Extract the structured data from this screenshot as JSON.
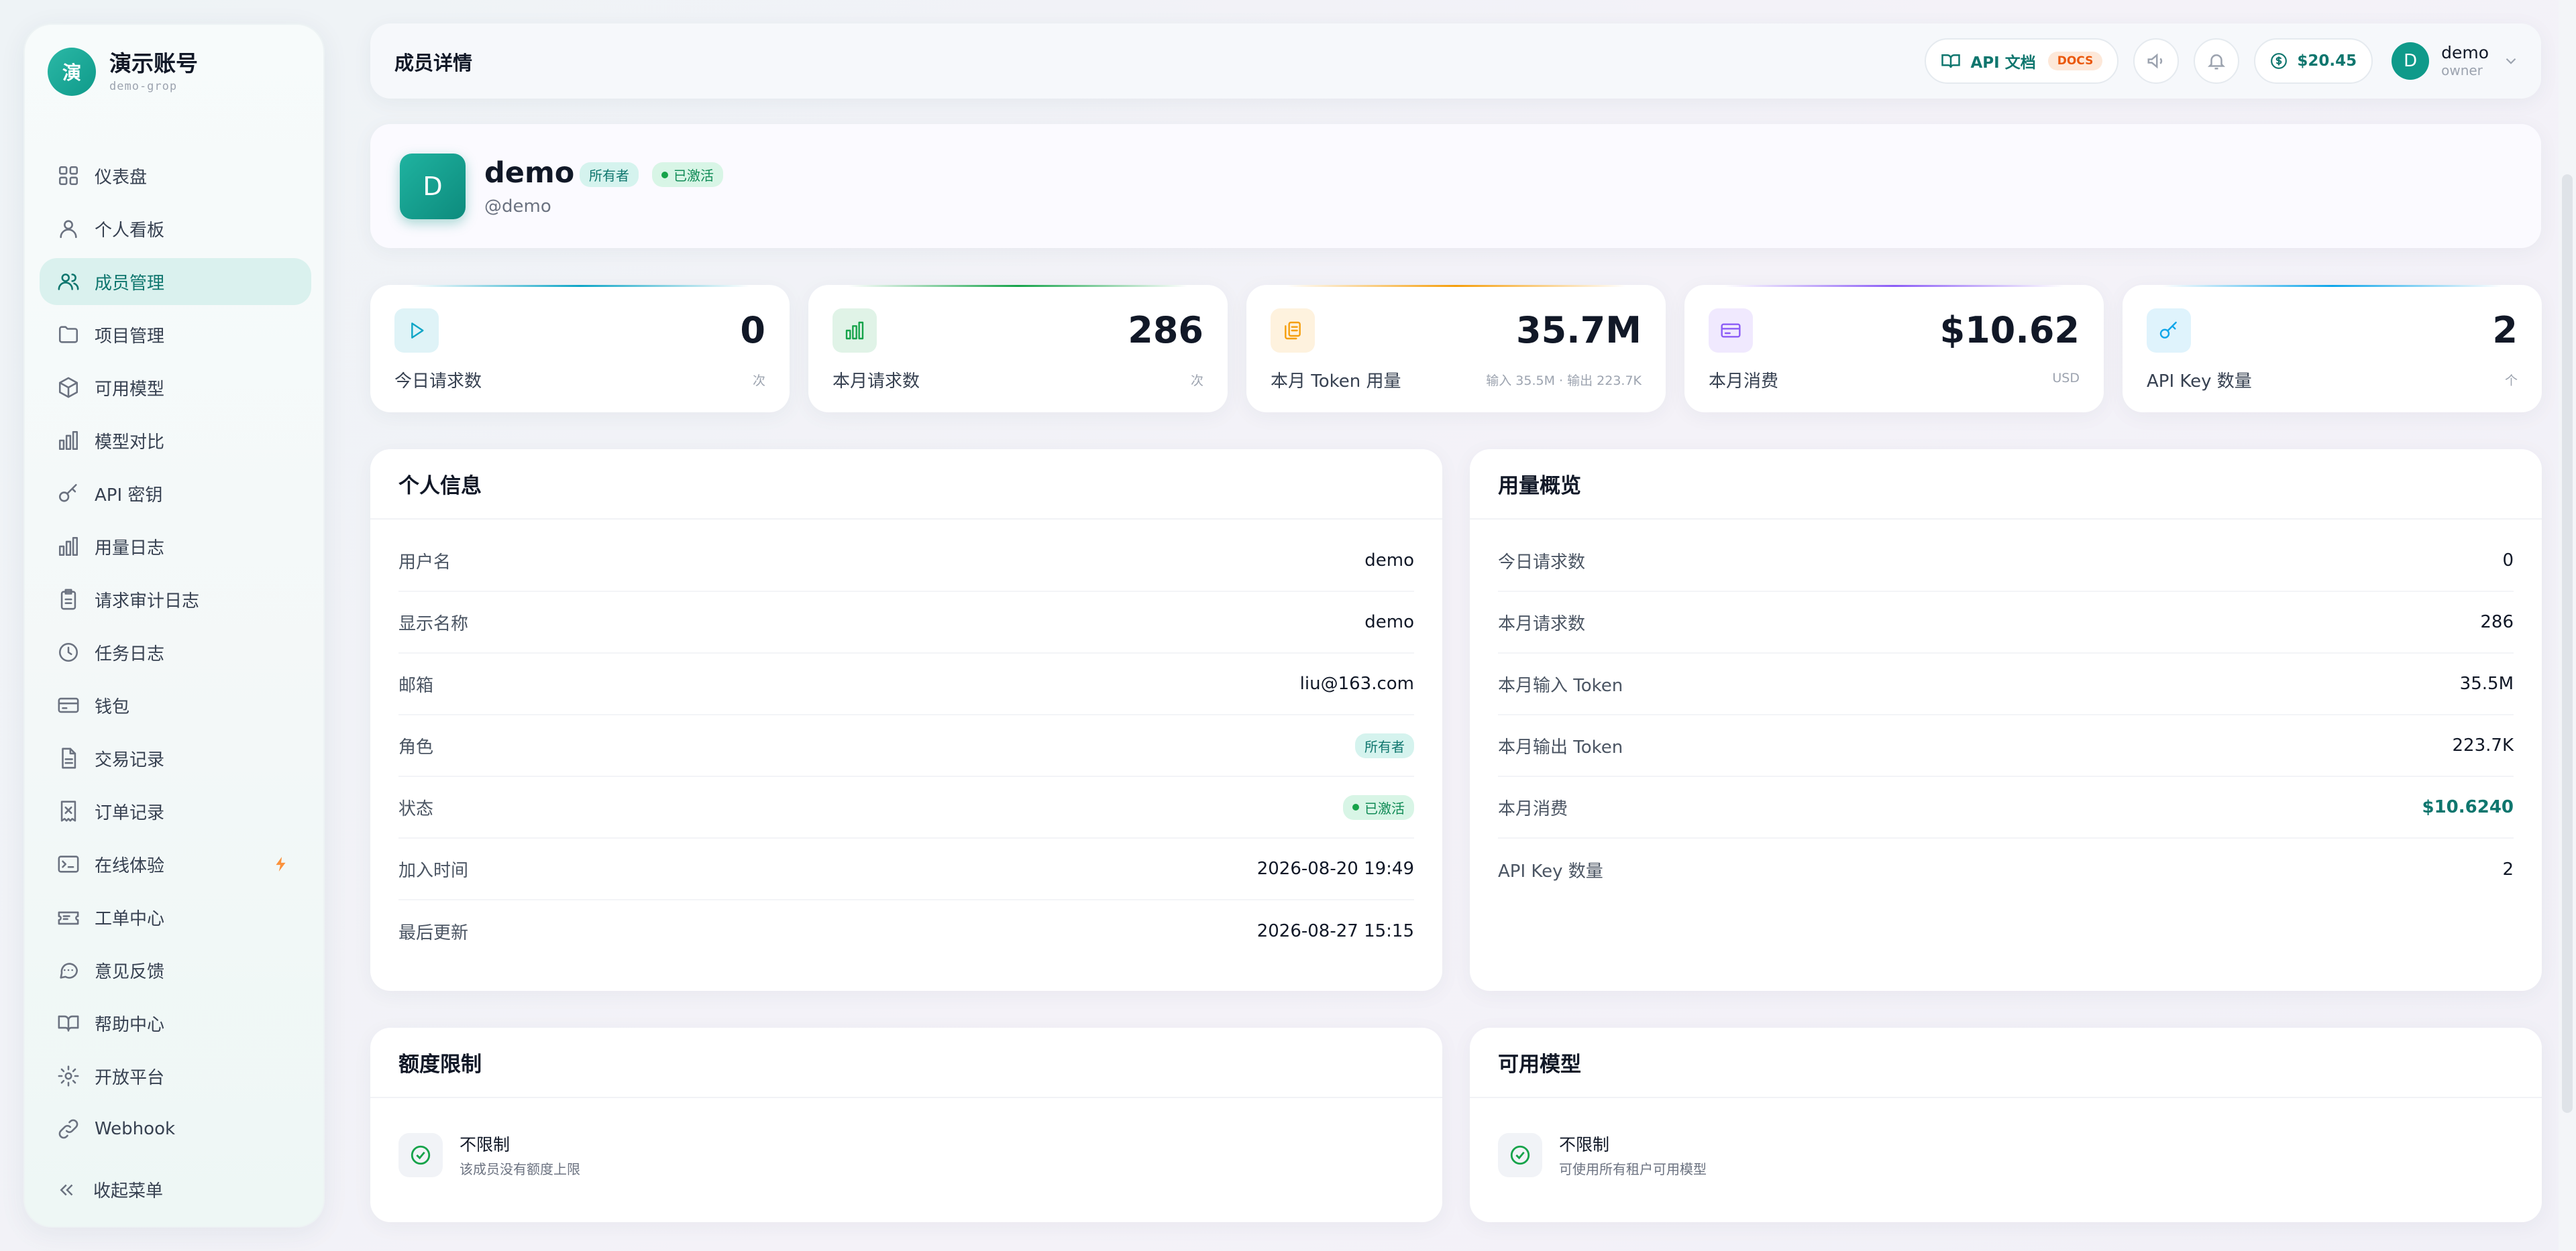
{
  "brand": {
    "logo_char": "演",
    "name": "演示账号",
    "sub": "demo-grop"
  },
  "nav": [
    {
      "label": "仪表盘",
      "icon": "dashboard-icon"
    },
    {
      "label": "个人看板",
      "icon": "user-icon"
    },
    {
      "label": "成员管理",
      "icon": "users-icon",
      "active": true
    },
    {
      "label": "项目管理",
      "icon": "folder-icon"
    },
    {
      "label": "可用模型",
      "icon": "cube-icon"
    },
    {
      "label": "模型对比",
      "icon": "bar-chart-icon"
    },
    {
      "label": "API 密钥",
      "icon": "key-icon"
    },
    {
      "label": "用量日志",
      "icon": "bar-chart-icon"
    },
    {
      "label": "请求审计日志",
      "icon": "clipboard-icon"
    },
    {
      "label": "任务日志",
      "icon": "clock-icon"
    },
    {
      "label": "钱包",
      "icon": "wallet-icon"
    },
    {
      "label": "交易记录",
      "icon": "document-icon"
    },
    {
      "label": "订单记录",
      "icon": "receipt-icon"
    },
    {
      "label": "在线体验",
      "icon": "terminal-icon",
      "badge_icon": "bolt-icon"
    },
    {
      "label": "工单中心",
      "icon": "ticket-icon"
    },
    {
      "label": "意见反馈",
      "icon": "chat-icon"
    },
    {
      "label": "帮助中心",
      "icon": "book-icon"
    },
    {
      "label": "开放平台",
      "icon": "gear-icon"
    },
    {
      "label": "Webhook",
      "icon": "link-icon"
    }
  ],
  "collapse_label": "收起菜单",
  "header": {
    "title": "成员详情",
    "api_docs_label": "API 文档",
    "docs_badge": "DOCS",
    "balance": "$20.45",
    "user_initial": "D",
    "user_name": "demo",
    "user_role": "owner"
  },
  "profile": {
    "initial": "D",
    "name": "demo",
    "role_badge": "所有者",
    "status_badge": "已激活",
    "handle": "@demo"
  },
  "stats": [
    {
      "label": "今日请求数",
      "value": "0",
      "unit": "次",
      "icon": "play-icon",
      "color": "#0ea5c6"
    },
    {
      "label": "本月请求数",
      "value": "286",
      "unit": "次",
      "icon": "bar-chart-icon",
      "color": "#16a34a"
    },
    {
      "label": "本月 Token 用量",
      "value": "35.7M",
      "unit": "输入 35.5M · 输出 223.7K",
      "icon": "copy-icon",
      "color": "#f59e0b"
    },
    {
      "label": "本月消费",
      "value": "$10.62",
      "unit": "USD",
      "icon": "card-icon",
      "color": "#8b5cf6"
    },
    {
      "label": "API Key 数量",
      "value": "2",
      "unit": "个",
      "icon": "key-icon",
      "color": "#0ea5e9"
    }
  ],
  "personal_info": {
    "title": "个人信息",
    "rows": [
      {
        "k": "用户名",
        "v": "demo"
      },
      {
        "k": "显示名称",
        "v": "demo"
      },
      {
        "k": "邮箱",
        "v": "liu@163.com"
      },
      {
        "k": "角色",
        "v": "所有者"
      },
      {
        "k": "状态",
        "v": "已激活"
      },
      {
        "k": "加入时间",
        "v": "2026-08-20 19:49"
      },
      {
        "k": "最后更新",
        "v": "2026-08-27 15:15"
      }
    ]
  },
  "usage": {
    "title": "用量概览",
    "rows": [
      {
        "k": "今日请求数",
        "v": "0"
      },
      {
        "k": "本月请求数",
        "v": "286"
      },
      {
        "k": "本月输入 Token",
        "v": "35.5M"
      },
      {
        "k": "本月输出 Token",
        "v": "223.7K"
      },
      {
        "k": "本月消费",
        "v": "$10.6240"
      },
      {
        "k": "API Key 数量",
        "v": "2"
      }
    ]
  },
  "quota": {
    "title": "额度限制",
    "status": "不限制",
    "desc": "该成员没有额度上限"
  },
  "models": {
    "title": "可用模型",
    "status": "不限制",
    "desc": "可使用所有租户可用模型"
  }
}
